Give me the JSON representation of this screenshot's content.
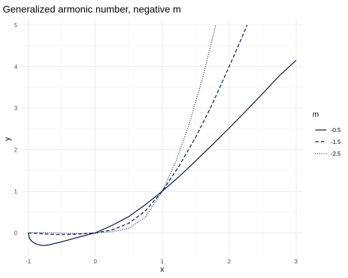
{
  "chart_data": {
    "type": "line",
    "title": "Generalized armonic number, negative m",
    "xlabel": "x",
    "ylabel": "y",
    "xlim": [
      -1.1,
      3.1
    ],
    "ylim": [
      -0.55,
      5.15
    ],
    "x_ticks": [
      -1,
      0,
      1,
      2,
      3
    ],
    "y_ticks": [
      0,
      1,
      2,
      3,
      4,
      5
    ],
    "grid": true,
    "legend": {
      "title": "m",
      "position": "right"
    },
    "line_color": "#0d1b4f",
    "series": [
      {
        "name": "-0.5",
        "linestyle": "solid",
        "x": [
          -1.0,
          -0.98,
          -0.95,
          -0.9,
          -0.85,
          -0.8,
          -0.75,
          -0.7,
          -0.6,
          -0.5,
          -0.4,
          -0.3,
          -0.2,
          -0.1,
          0.0,
          0.25,
          0.5,
          0.75,
          1.0,
          1.25,
          1.5,
          1.75,
          2.0,
          2.25,
          2.5,
          2.75,
          3.0
        ],
        "y": [
          0.0,
          -0.139,
          -0.198,
          -0.255,
          -0.285,
          -0.3,
          -0.301,
          -0.29,
          -0.251,
          -0.213,
          -0.17,
          -0.126,
          -0.083,
          -0.041,
          0.0,
          0.18,
          0.39,
          0.68,
          1.0,
          1.35,
          1.73,
          2.12,
          2.52,
          2.93,
          3.35,
          3.78,
          4.15
        ]
      },
      {
        "name": "-1.5",
        "linestyle": "dashed",
        "x": [
          -1.0,
          -0.8,
          -0.6,
          -0.4,
          -0.2,
          0.0,
          0.25,
          0.5,
          0.75,
          1.0,
          1.25,
          1.5,
          1.75,
          2.0,
          2.15,
          2.27
        ],
        "y": [
          0.0,
          -0.02,
          -0.04,
          -0.04,
          -0.025,
          0.0,
          0.07,
          0.23,
          0.53,
          1.0,
          1.6,
          2.3,
          3.1,
          4.0,
          4.55,
          5.0
        ]
      },
      {
        "name": "-2.5",
        "linestyle": "dotted",
        "x": [
          -1.0,
          -0.8,
          -0.6,
          -0.4,
          -0.2,
          0.0,
          0.25,
          0.5,
          0.75,
          1.0,
          1.2,
          1.4,
          1.6,
          1.8
        ],
        "y": [
          0.0,
          0.01,
          0.0,
          -0.01,
          -0.01,
          0.0,
          0.025,
          0.11,
          0.38,
          1.0,
          1.7,
          2.6,
          3.7,
          5.0
        ]
      }
    ]
  }
}
